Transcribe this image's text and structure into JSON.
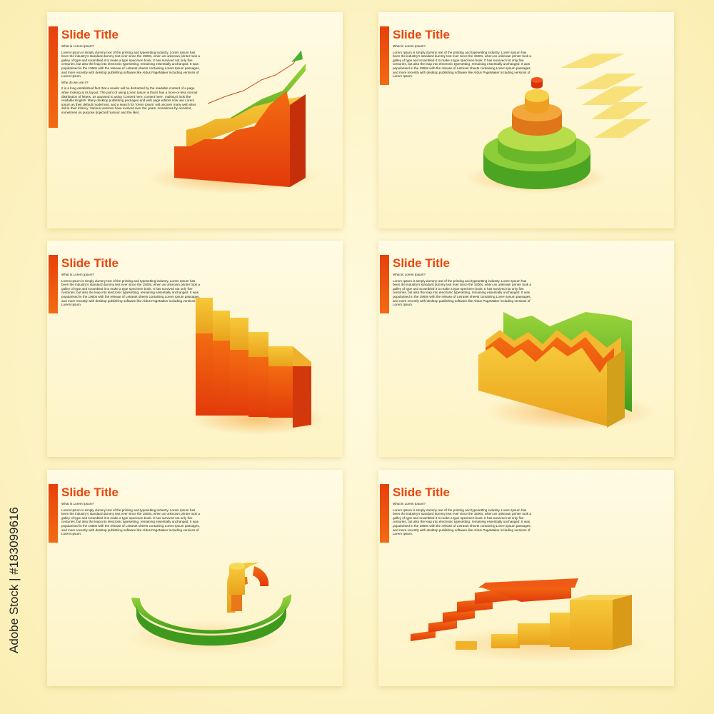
{
  "slides": [
    {
      "title": "Slide Title",
      "paragraphs": [
        "What is Lorem Ipsum?",
        "Lorem Ipsum is simply dummy text of the printing and typesetting industry. Lorem Ipsum has been the industry's standard dummy text ever since the 1500s, when an unknown printer took a galley of type and scrambled it to make a type specimen book. It has survived not only five centuries, but also the leap into electronic typesetting, remaining essentially unchanged. It was popularised in the 1960s with the release of Letraset sheets containing Lorem Ipsum passages, and more recently with desktop publishing software like Aldus PageMaker including versions of Lorem Ipsum.",
        "Why do we use it?",
        "It is a long established fact that a reader will be distracted by the readable content of a page when looking at its layout. The point of using Lorem Ipsum is that it has a more-or-less normal distribution of letters, as opposed to using 'Content here, content here', making it look like readable English. Many desktop publishing packages and web page editors now use Lorem Ipsum as their default model text, and a search for 'lorem ipsum' will uncover many web sites still in their infancy. Various versions have evolved over the years, sometimes by accident, sometimes on purpose (injected humour and the like)."
      ]
    },
    {
      "title": "Slide Title",
      "paragraphs": [
        "What is Lorem Ipsum?",
        "Lorem Ipsum is simply dummy text of the printing and typesetting industry. Lorem Ipsum has been the industry's standard dummy text ever since the 1500s, when an unknown printer took a galley of type and scrambled it to make a type specimen book. It has survived not only five centuries, but also the leap into electronic typesetting, remaining essentially unchanged. It was popularised in the 1960s with the release of Letraset sheets containing Lorem Ipsum passages, and more recently with desktop publishing software like Aldus PageMaker including versions of Lorem Ipsum."
      ]
    },
    {
      "title": "Slide Title",
      "paragraphs": [
        "What is Lorem Ipsum?",
        "Lorem Ipsum is simply dummy text of the printing and typesetting industry. Lorem Ipsum has been the industry's standard dummy text ever since the 1500s, when an unknown printer took a galley of type and scrambled it to make a type specimen book. It has survived not only five centuries, but also the leap into electronic typesetting, remaining essentially unchanged. It was popularised in the 1960s with the release of Letraset sheets containing Lorem Ipsum passages, and more recently with desktop publishing software like Aldus PageMaker including versions of Lorem Ipsum."
      ]
    },
    {
      "title": "Slide Title",
      "paragraphs": [
        "What is Lorem Ipsum?",
        "Lorem Ipsum is simply dummy text of the printing and typesetting industry. Lorem Ipsum has been the industry's standard dummy text ever since the 1500s, when an unknown printer took a galley of type and scrambled it to make a type specimen book. It has survived not only five centuries, but also the leap into electronic typesetting, remaining essentially unchanged. It was popularised in the 1960s with the release of Letraset sheets containing Lorem Ipsum passages, and more recently with desktop publishing software like Aldus PageMaker including versions of Lorem Ipsum."
      ]
    },
    {
      "title": "Slide Title",
      "paragraphs": [
        "What is Lorem Ipsum?",
        "Lorem Ipsum is simply dummy text of the printing and typesetting industry. Lorem Ipsum has been the industry's standard dummy text ever since the 1500s, when an unknown printer took a galley of type and scrambled it to make a type specimen book. It has survived not only five centuries, but also the leap into electronic typesetting, remaining essentially unchanged. It was popularised in the 1960s with the release of Letraset sheets containing Lorem Ipsum passages, and more recently with desktop publishing software like Aldus PageMaker including versions of Lorem Ipsum."
      ]
    },
    {
      "title": "Slide Title",
      "paragraphs": [
        "What is Lorem Ipsum?",
        "Lorem Ipsum is simply dummy text of the printing and typesetting industry. Lorem Ipsum has been the industry's standard dummy text ever since the 1500s, when an unknown printer took a galley of type and scrambled it to make a type specimen book. It has survived not only five centuries, but also the leap into electronic typesetting, remaining essentially unchanged. It was popularised in the 1960s with the release of Letraset sheets containing Lorem Ipsum passages, and more recently with desktop publishing software like Aldus PageMaker including versions of Lorem Ipsum."
      ]
    }
  ],
  "watermark": "Adobe Stock | #183099616"
}
